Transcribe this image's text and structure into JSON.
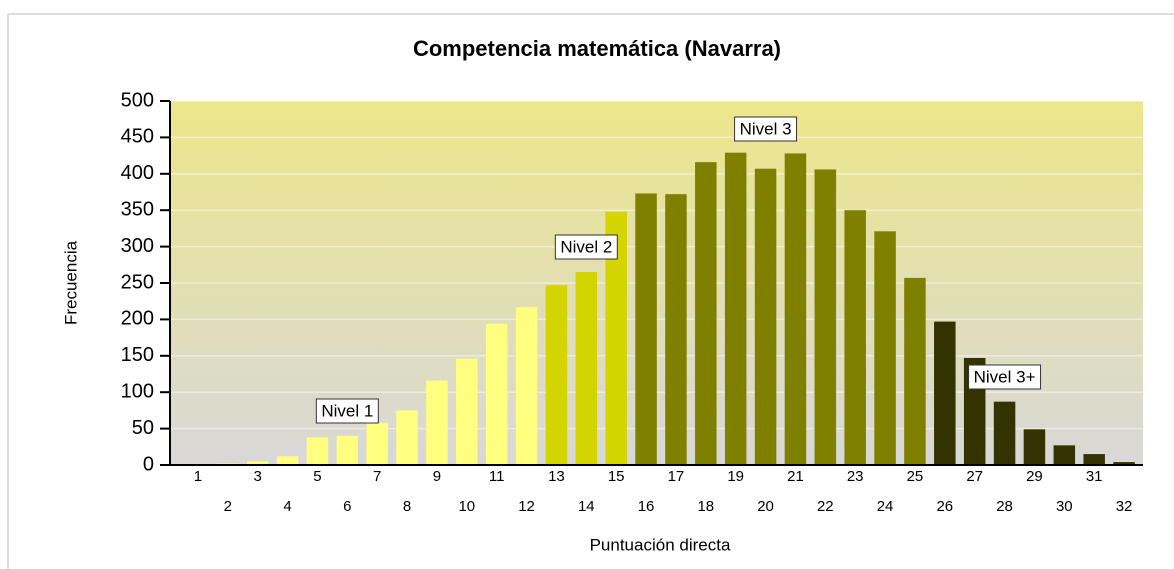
{
  "chart_data": {
    "type": "bar",
    "title": "Competencia matemática (Navarra)",
    "x_label": "Puntuación directa",
    "y_label": "Frecuencia",
    "categories": [
      "1",
      "2",
      "3",
      "4",
      "5",
      "6",
      "7",
      "8",
      "9",
      "10",
      "11",
      "12",
      "13",
      "14",
      "15",
      "16",
      "17",
      "18",
      "19",
      "20",
      "21",
      "22",
      "23",
      "24",
      "25",
      "26",
      "27",
      "28",
      "29",
      "30",
      "31",
      "32"
    ],
    "values": [
      1,
      2,
      5,
      12,
      38,
      40,
      58,
      75,
      116,
      146,
      194,
      217,
      247,
      265,
      348,
      373,
      372,
      416,
      429,
      407,
      428,
      406,
      350,
      321,
      257,
      197,
      147,
      87,
      49,
      27,
      15,
      4
    ],
    "colors": [
      "#ffff80",
      "#ffff80",
      "#ffff80",
      "#ffff80",
      "#ffff80",
      "#ffff80",
      "#ffff80",
      "#ffff80",
      "#ffff80",
      "#ffff80",
      "#ffff80",
      "#ffff80",
      "#d4d400",
      "#d4d400",
      "#d4d400",
      "#808000",
      "#808000",
      "#808000",
      "#808000",
      "#808000",
      "#808000",
      "#808000",
      "#808000",
      "#808000",
      "#808000",
      "#333300",
      "#333300",
      "#333300",
      "#333300",
      "#333300",
      "#333300",
      "#333300"
    ],
    "ylim": [
      0,
      500
    ],
    "yticks": [
      0,
      50,
      100,
      150,
      200,
      250,
      300,
      350,
      400,
      450,
      500
    ],
    "grid": true,
    "annotations": [
      "Nivel 1",
      "Nivel 2",
      "Nivel 3",
      "Nivel 3+"
    ]
  }
}
